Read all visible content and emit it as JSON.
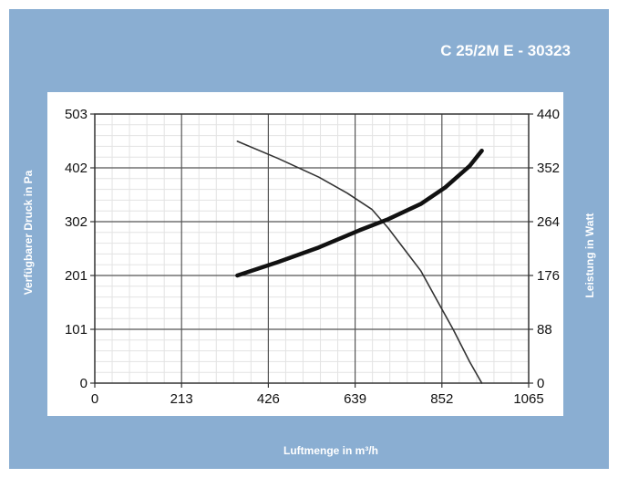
{
  "title": "C 25/2M E - 30323",
  "chart_data": {
    "type": "line",
    "title": "C 25/2M E - 30323",
    "xlabel": "Luftmenge in m³/h",
    "ylabel_left": "Verfügbarer Druck in Pa",
    "ylabel_right": "Leistung in Watt",
    "xlim": [
      0,
      1065
    ],
    "ylim_left": [
      0,
      503
    ],
    "ylim_right": [
      0,
      440
    ],
    "x_ticks": [
      "0",
      "213",
      "426",
      "639",
      "852",
      "1065"
    ],
    "y_left_ticks": [
      "0",
      "101",
      "201",
      "302",
      "402",
      "503"
    ],
    "y_right_ticks": [
      "0",
      "88",
      "176",
      "264",
      "352",
      "440"
    ],
    "grid": true,
    "series": [
      {
        "axis": "left",
        "style": "thin",
        "x": [
          350,
          450,
          550,
          620,
          680,
          720,
          760,
          800,
          840,
          880,
          920,
          950
        ],
        "y": [
          452,
          420,
          385,
          355,
          325,
          290,
          250,
          210,
          155,
          100,
          40,
          0
        ]
      },
      {
        "axis": "right",
        "style": "thick",
        "x": [
          350,
          450,
          550,
          650,
          720,
          800,
          860,
          920,
          950
        ],
        "y": [
          176,
          198,
          222,
          250,
          268,
          293,
          320,
          355,
          380
        ]
      }
    ]
  }
}
